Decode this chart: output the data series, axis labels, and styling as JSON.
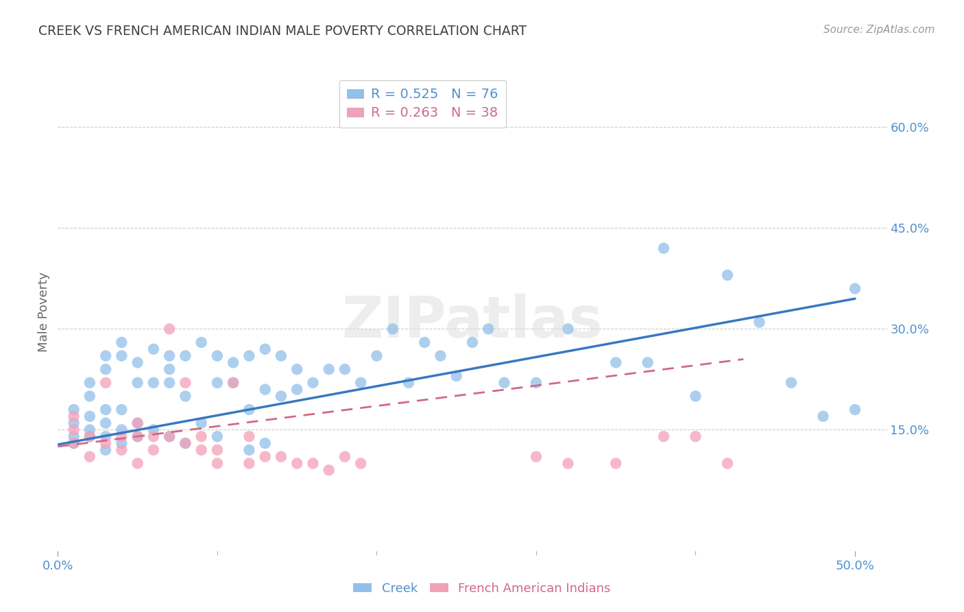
{
  "title": "CREEK VS FRENCH AMERICAN INDIAN MALE POVERTY CORRELATION CHART",
  "source": "Source: ZipAtlas.com",
  "ylabel": "Male Poverty",
  "xlim": [
    0.0,
    0.52
  ],
  "ylim": [
    -0.03,
    0.68
  ],
  "x_ticks": [
    0.0,
    0.5
  ],
  "x_tick_labels": [
    "0.0%",
    "50.0%"
  ],
  "y_ticks": [
    0.15,
    0.3,
    0.45,
    0.6
  ],
  "y_tick_labels": [
    "15.0%",
    "30.0%",
    "45.0%",
    "60.0%"
  ],
  "creek_R": "0.525",
  "creek_N": "76",
  "fai_R": "0.263",
  "fai_N": "38",
  "creek_color": "#92C0EA",
  "fai_color": "#F4A0B8",
  "trendline_creek_color": "#3878C0",
  "trendline_fai_color": "#D06888",
  "title_color": "#404040",
  "axis_label_color": "#5090D0",
  "legend_text_creek_color": "#5090D0",
  "legend_text_fai_color": "#D06888",
  "grid_color": "#CCCCCC",
  "watermark": "ZIPatlas",
  "creek_x": [
    0.01,
    0.01,
    0.01,
    0.01,
    0.02,
    0.02,
    0.02,
    0.02,
    0.02,
    0.03,
    0.03,
    0.03,
    0.03,
    0.03,
    0.03,
    0.04,
    0.04,
    0.04,
    0.04,
    0.04,
    0.05,
    0.05,
    0.05,
    0.05,
    0.06,
    0.06,
    0.06,
    0.07,
    0.07,
    0.07,
    0.07,
    0.08,
    0.08,
    0.08,
    0.09,
    0.09,
    0.1,
    0.1,
    0.1,
    0.11,
    0.11,
    0.12,
    0.12,
    0.12,
    0.13,
    0.13,
    0.13,
    0.14,
    0.14,
    0.15,
    0.15,
    0.16,
    0.17,
    0.18,
    0.19,
    0.2,
    0.21,
    0.22,
    0.23,
    0.24,
    0.25,
    0.26,
    0.27,
    0.28,
    0.3,
    0.32,
    0.35,
    0.37,
    0.38,
    0.4,
    0.42,
    0.44,
    0.46,
    0.48,
    0.5,
    0.5
  ],
  "creek_y": [
    0.13,
    0.14,
    0.16,
    0.18,
    0.14,
    0.15,
    0.17,
    0.2,
    0.22,
    0.12,
    0.14,
    0.16,
    0.18,
    0.24,
    0.26,
    0.13,
    0.15,
    0.18,
    0.26,
    0.28,
    0.14,
    0.16,
    0.22,
    0.25,
    0.15,
    0.22,
    0.27,
    0.14,
    0.22,
    0.24,
    0.26,
    0.13,
    0.2,
    0.26,
    0.16,
    0.28,
    0.14,
    0.22,
    0.26,
    0.22,
    0.25,
    0.12,
    0.18,
    0.26,
    0.13,
    0.21,
    0.27,
    0.2,
    0.26,
    0.21,
    0.24,
    0.22,
    0.24,
    0.24,
    0.22,
    0.26,
    0.3,
    0.22,
    0.28,
    0.26,
    0.23,
    0.28,
    0.3,
    0.22,
    0.22,
    0.3,
    0.25,
    0.25,
    0.42,
    0.2,
    0.38,
    0.31,
    0.22,
    0.17,
    0.36,
    0.18
  ],
  "fai_x": [
    0.01,
    0.01,
    0.01,
    0.02,
    0.02,
    0.03,
    0.03,
    0.04,
    0.04,
    0.05,
    0.05,
    0.05,
    0.06,
    0.06,
    0.07,
    0.07,
    0.08,
    0.08,
    0.09,
    0.09,
    0.1,
    0.1,
    0.11,
    0.12,
    0.12,
    0.13,
    0.14,
    0.15,
    0.16,
    0.17,
    0.18,
    0.19,
    0.3,
    0.32,
    0.35,
    0.38,
    0.4,
    0.42
  ],
  "fai_y": [
    0.13,
    0.15,
    0.17,
    0.11,
    0.14,
    0.13,
    0.22,
    0.12,
    0.14,
    0.1,
    0.14,
    0.16,
    0.12,
    0.14,
    0.14,
    0.3,
    0.13,
    0.22,
    0.12,
    0.14,
    0.1,
    0.12,
    0.22,
    0.1,
    0.14,
    0.11,
    0.11,
    0.1,
    0.1,
    0.09,
    0.11,
    0.1,
    0.11,
    0.1,
    0.1,
    0.14,
    0.14,
    0.1
  ],
  "creek_trend_x": [
    0.0,
    0.5
  ],
  "creek_trend_y": [
    0.128,
    0.345
  ],
  "fai_trend_x": [
    0.0,
    0.43
  ],
  "fai_trend_y": [
    0.125,
    0.255
  ]
}
